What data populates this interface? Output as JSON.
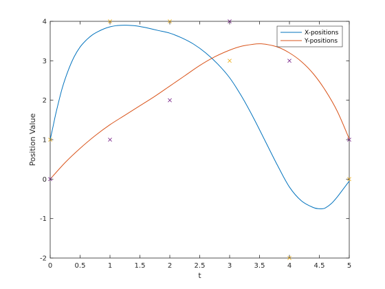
{
  "chart_data": {
    "type": "line",
    "title": "",
    "xlabel": "t",
    "ylabel": "Position Value",
    "xlim": [
      0,
      5
    ],
    "ylim": [
      -2,
      4
    ],
    "x_ticks": [
      0,
      0.5,
      1,
      1.5,
      2,
      2.5,
      3,
      3.5,
      4,
      4.5,
      5
    ],
    "x_tick_labels": [
      "0",
      "0.5",
      "1",
      "1.5",
      "2",
      "2.5",
      "3",
      "3.5",
      "4",
      "4.5",
      "5"
    ],
    "y_ticks": [
      -2,
      -1,
      0,
      1,
      2,
      3,
      4
    ],
    "y_tick_labels": [
      "-2",
      "-1",
      "0",
      "1",
      "2",
      "3",
      "4"
    ],
    "grid": false,
    "legend_position": "top-right",
    "series": [
      {
        "name": "X-positions",
        "color": "#0072BD",
        "x": [
          0,
          0.05,
          0.1,
          0.2,
          0.3,
          0.4,
          0.5,
          0.6,
          0.7,
          0.8,
          0.9,
          1.0,
          1.1,
          1.2,
          1.3,
          1.4,
          1.5,
          1.6,
          1.8,
          2.0,
          2.2,
          2.4,
          2.6,
          2.8,
          3.0,
          3.2,
          3.4,
          3.6,
          3.8,
          4.0,
          4.2,
          4.4,
          4.5,
          4.55,
          4.6,
          4.7,
          4.8,
          4.9,
          5.0
        ],
        "y": [
          1.0,
          1.35,
          1.7,
          2.3,
          2.75,
          3.1,
          3.35,
          3.52,
          3.65,
          3.74,
          3.81,
          3.86,
          3.89,
          3.9,
          3.9,
          3.89,
          3.87,
          3.84,
          3.77,
          3.7,
          3.58,
          3.42,
          3.2,
          2.92,
          2.57,
          2.1,
          1.55,
          0.95,
          0.35,
          -0.2,
          -0.55,
          -0.72,
          -0.75,
          -0.75,
          -0.73,
          -0.62,
          -0.45,
          -0.25,
          -0.05
        ]
      },
      {
        "name": "Y-positions",
        "color": "#D95319",
        "x": [
          0,
          0.25,
          0.5,
          0.75,
          1.0,
          1.25,
          1.5,
          1.75,
          2.0,
          2.25,
          2.5,
          2.75,
          3.0,
          3.2,
          3.4,
          3.5,
          3.6,
          3.8,
          4.0,
          4.2,
          4.4,
          4.6,
          4.8,
          5.0
        ],
        "y": [
          0.0,
          0.42,
          0.78,
          1.1,
          1.38,
          1.62,
          1.86,
          2.1,
          2.36,
          2.62,
          2.88,
          3.1,
          3.27,
          3.37,
          3.42,
          3.43,
          3.42,
          3.35,
          3.2,
          2.98,
          2.67,
          2.25,
          1.72,
          1.02
        ]
      }
    ],
    "markers": [
      {
        "symbol": "x",
        "color": "#7E2F8E",
        "x": [
          0,
          1,
          2,
          3,
          4,
          5
        ],
        "y": [
          0,
          1,
          2,
          4,
          3,
          1
        ]
      },
      {
        "symbol": "x",
        "color": "#EDB120",
        "x": [
          0,
          1,
          2,
          3,
          4,
          5
        ],
        "y": [
          1,
          4,
          4,
          3,
          -2,
          0
        ]
      }
    ]
  }
}
